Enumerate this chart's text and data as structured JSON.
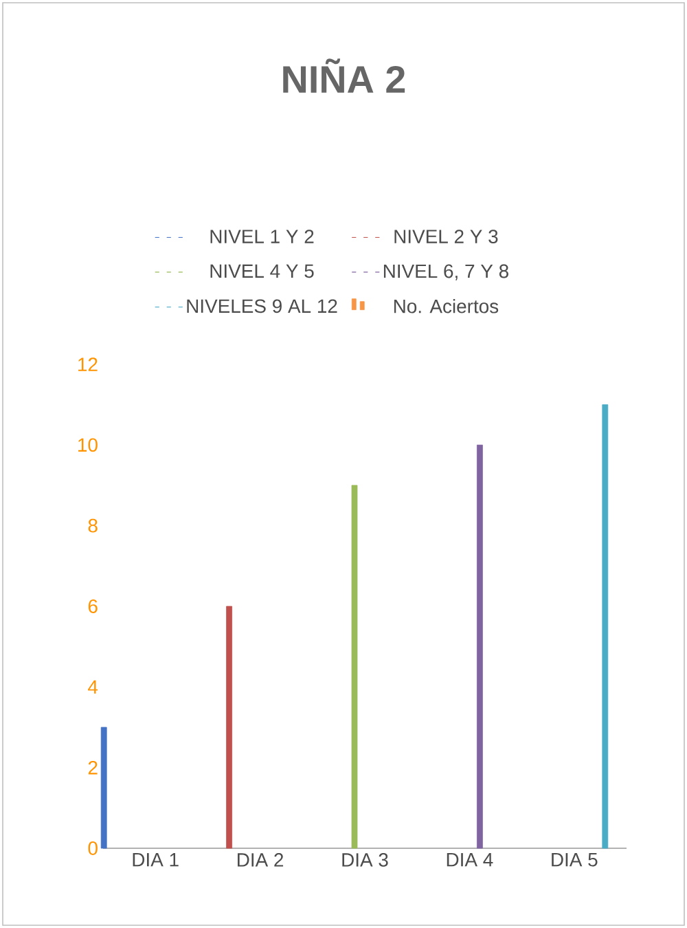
{
  "chart_data": {
    "type": "bar",
    "title": "NIÑA 2",
    "categories": [
      "DIA 1",
      "DIA 2",
      "DIA 3",
      "DIA 4",
      "DIA 5"
    ],
    "series": [
      {
        "name": "NIVEL 1 Y 2",
        "color": "#4472c4",
        "values": [
          3,
          null,
          null,
          null,
          null
        ]
      },
      {
        "name": "NIVEL 2 Y 3",
        "color": "#c0504d",
        "values": [
          null,
          6,
          null,
          null,
          null
        ]
      },
      {
        "name": "NIVEL 4 Y 5",
        "color": "#9bbb59",
        "values": [
          null,
          null,
          9,
          null,
          null
        ]
      },
      {
        "name": "NIVEL 6, 7 Y 8",
        "color": "#8064a2",
        "values": [
          null,
          null,
          null,
          10,
          null
        ]
      },
      {
        "name": "NIVELES 9 AL 12",
        "color": "#4bacc6",
        "values": [
          null,
          null,
          null,
          null,
          11
        ]
      },
      {
        "name": "No. Aciertos",
        "color": "#f79646",
        "values": [
          null,
          null,
          null,
          null,
          null
        ]
      }
    ],
    "ylim": [
      0,
      12
    ],
    "yticks": [
      0,
      2,
      4,
      6,
      8,
      10,
      12
    ],
    "grid": false,
    "legend": "top"
  }
}
